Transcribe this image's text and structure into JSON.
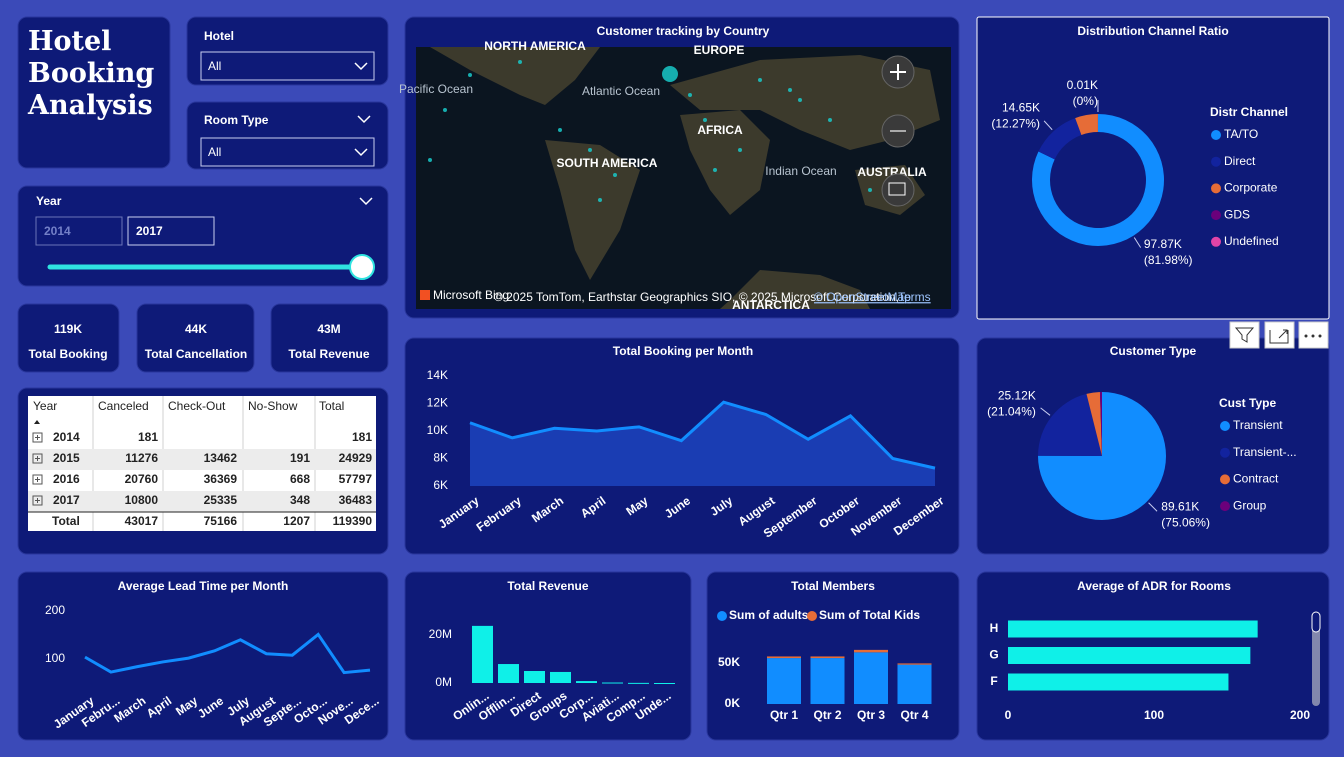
{
  "title": "Hotel Booking Analysis",
  "filters": [
    {
      "label": "Hotel",
      "value": "All"
    },
    {
      "label": "Room Type",
      "value": "All"
    }
  ],
  "year_slicer": {
    "label": "Year",
    "from": 2014,
    "to": 2017
  },
  "cards": [
    {
      "value": "119K",
      "label": "Total Booking"
    },
    {
      "value": "44K",
      "label": "Total Cancellation"
    },
    {
      "value": "43M",
      "label": "Total Revenue"
    }
  ],
  "table": {
    "columns": [
      "Year",
      "Canceled",
      "Check-Out",
      "No-Show",
      "Total"
    ],
    "rows": [
      [
        2014,
        181,
        null,
        null,
        181
      ],
      [
        2015,
        11276,
        13462,
        191,
        24929
      ],
      [
        2016,
        20760,
        36369,
        668,
        57797
      ],
      [
        2017,
        10800,
        25335,
        348,
        36483
      ]
    ],
    "total": [
      "Total",
      43017,
      75166,
      1207,
      119390
    ]
  },
  "map": {
    "title": "Customer tracking by Country",
    "labels": [
      "NORTH AMERICA",
      "EUROPE",
      "Pacific Ocean",
      "Atlantic Ocean",
      "AFRICA",
      "SOUTH AMERICA",
      "Indian Ocean",
      "AUSTRALIA",
      "ANTARCTICA"
    ],
    "attribution": "Microsoft Bing",
    "copyright": "© 2025 TomTom, Earthstar Geographics SIO, © 2025 Microsoft Corporation,",
    "links": [
      "© OpenStreetMap",
      "Terms"
    ]
  },
  "chart_data": [
    {
      "type": "donut",
      "title": "Distribution Channel Ratio",
      "legend_title": "Distr Channel",
      "categories": [
        "TA/TO",
        "Direct",
        "Corporate",
        "GDS",
        "Undefined"
      ],
      "values": [
        97870,
        14650,
        6690,
        10,
        1
      ],
      "value_labels": [
        "97.87K",
        "14.65K",
        null,
        "0.01K",
        null
      ],
      "percent_labels": [
        "(81.98%)",
        "(12.27%)",
        null,
        "(0%)",
        null
      ],
      "colors": [
        "#118dff",
        "#12239e",
        "#e66c37",
        "#6b007b",
        "#e044a7"
      ]
    },
    {
      "type": "pie",
      "title": "Customer Type",
      "legend_title": "Cust Type",
      "categories": [
        "Transient",
        "Transient-...",
        "Contract",
        "Group"
      ],
      "values": [
        89610,
        25120,
        4050,
        610
      ],
      "value_labels": [
        "89.61K",
        "25.12K",
        null,
        null
      ],
      "percent_labels": [
        "(75.06%)",
        "(21.04%)",
        null,
        null
      ],
      "colors": [
        "#118dff",
        "#12239e",
        "#e66c37",
        "#6b007b"
      ]
    },
    {
      "type": "area",
      "title": "Total Booking per Month",
      "categories": [
        "January",
        "February",
        "March",
        "April",
        "May",
        "June",
        "July",
        "August",
        "September",
        "October",
        "November",
        "December"
      ],
      "values": [
        10600,
        9500,
        10200,
        10000,
        10300,
        9300,
        12100,
        11200,
        9400,
        11100,
        8000,
        7300
      ],
      "color": "#118dff",
      "fill": "#1a3db3",
      "ylim": [
        6000,
        14000
      ],
      "yticks": [
        {
          "value": 6000,
          "label": "6K"
        },
        {
          "value": 8000,
          "label": "8K"
        },
        {
          "value": 10000,
          "label": "10K"
        },
        {
          "value": 12000,
          "label": "12K"
        },
        {
          "value": 14000,
          "label": "14K"
        }
      ]
    },
    {
      "type": "line",
      "title": "Average Lead Time per Month",
      "categories": [
        "January",
        "Febru...",
        "March",
        "April",
        "May",
        "June",
        "July",
        "August",
        "Septe...",
        "Octo...",
        "Nove...",
        "Dece..."
      ],
      "values": [
        104,
        73,
        84,
        94,
        102,
        117,
        140,
        111,
        108,
        151,
        72,
        77
      ],
      "color": "#118dff",
      "ylim": [
        40,
        210
      ],
      "yticks": [
        100,
        200
      ]
    },
    {
      "type": "bar",
      "title": "Total Revenue",
      "categories": [
        "Onlin...",
        "Offlin...",
        "Direct",
        "Groups",
        "Corp...",
        "Aviati...",
        "Comp...",
        "Unde..."
      ],
      "values": [
        23800000,
        7900000,
        5000000,
        4600000,
        800000,
        200000,
        50000,
        0
      ],
      "color": "#0ff0e8",
      "ylim": [
        0,
        25000000
      ],
      "yticks": [
        {
          "value": 0,
          "label": "0M"
        },
        {
          "value": 20000000,
          "label": "20M"
        }
      ]
    },
    {
      "type": "stacked_bar",
      "title": "Total Members",
      "categories": [
        "Qtr 1",
        "Qtr 2",
        "Qtr 3",
        "Qtr 4"
      ],
      "series": [
        {
          "name": "Sum of adults",
          "color": "#118dff",
          "values": [
            56000,
            56000,
            63000,
            48000
          ]
        },
        {
          "name": "Sum of Total Kids",
          "color": "#e66c37",
          "values": [
            2000,
            2000,
            3000,
            1500
          ]
        }
      ],
      "ylim": [
        0,
        80000
      ],
      "yticks": [
        {
          "value": 0,
          "label": "0K"
        },
        {
          "value": 50000,
          "label": "50K"
        }
      ]
    },
    {
      "type": "hbar",
      "title": "Average of ADR for Rooms",
      "categories": [
        "H",
        "G",
        "F"
      ],
      "values": [
        171,
        166,
        151
      ],
      "color": "#0ff0e8",
      "xlim": [
        0,
        200
      ],
      "xticks": [
        0,
        100,
        200
      ]
    }
  ]
}
